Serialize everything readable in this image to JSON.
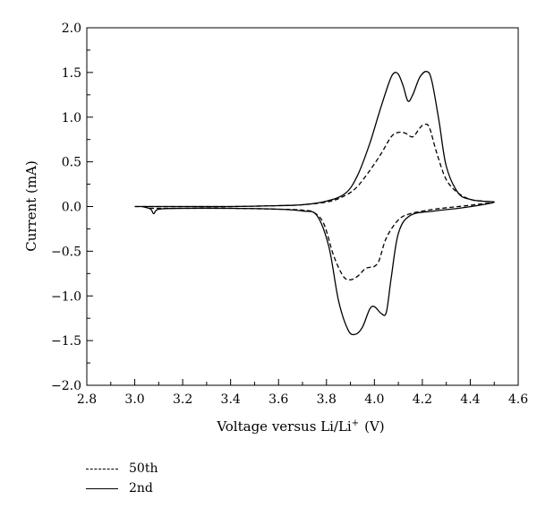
{
  "chart_data": {
    "type": "line",
    "xlabel_main": "Voltage versus Li/Li",
    "xlabel_sup": "+",
    "xlabel_unit": "(V)",
    "ylabel": "Current (mA)",
    "xlim": [
      2.8,
      4.6
    ],
    "ylim": [
      -2.0,
      2.0
    ],
    "xticks": [
      "2.8",
      "3.0",
      "3.2",
      "3.4",
      "3.6",
      "3.8",
      "4.0",
      "4.2",
      "4.4",
      "4.6"
    ],
    "yticks": [
      "2.0",
      "1.5",
      "1.0",
      "0.5",
      "0.0",
      "−0.5",
      "−1.0",
      "−1.5",
      "−2.0"
    ],
    "grid": false,
    "legend_position": "bottom-left",
    "series": [
      {
        "name": "50th",
        "style": "dashed",
        "points": [
          [
            3.0,
            0.0
          ],
          [
            3.2,
            0.0
          ],
          [
            3.4,
            0.0
          ],
          [
            3.6,
            0.01
          ],
          [
            3.7,
            0.02
          ],
          [
            3.8,
            0.05
          ],
          [
            3.86,
            0.1
          ],
          [
            3.92,
            0.2
          ],
          [
            3.98,
            0.4
          ],
          [
            4.03,
            0.6
          ],
          [
            4.07,
            0.78
          ],
          [
            4.1,
            0.83
          ],
          [
            4.13,
            0.82
          ],
          [
            4.16,
            0.78
          ],
          [
            4.19,
            0.88
          ],
          [
            4.21,
            0.92
          ],
          [
            4.23,
            0.88
          ],
          [
            4.26,
            0.6
          ],
          [
            4.3,
            0.3
          ],
          [
            4.35,
            0.15
          ],
          [
            4.4,
            0.08
          ],
          [
            4.45,
            0.06
          ],
          [
            4.5,
            0.05
          ],
          [
            4.45,
            0.03
          ],
          [
            4.35,
            0.0
          ],
          [
            4.25,
            -0.03
          ],
          [
            4.15,
            -0.08
          ],
          [
            4.1,
            -0.15
          ],
          [
            4.05,
            -0.35
          ],
          [
            4.02,
            -0.6
          ],
          [
            4.0,
            -0.67
          ],
          [
            3.98,
            -0.68
          ],
          [
            3.96,
            -0.7
          ],
          [
            3.93,
            -0.78
          ],
          [
            3.9,
            -0.82
          ],
          [
            3.87,
            -0.78
          ],
          [
            3.83,
            -0.55
          ],
          [
            3.79,
            -0.2
          ],
          [
            3.75,
            -0.07
          ],
          [
            3.7,
            -0.04
          ],
          [
            3.6,
            -0.03
          ],
          [
            3.4,
            -0.02
          ],
          [
            3.2,
            -0.02
          ],
          [
            3.1,
            -0.02
          ],
          [
            3.05,
            -0.02
          ]
        ]
      },
      {
        "name": "2nd",
        "style": "solid",
        "points": [
          [
            3.0,
            0.0
          ],
          [
            3.2,
            0.0
          ],
          [
            3.4,
            0.0
          ],
          [
            3.6,
            0.01
          ],
          [
            3.7,
            0.02
          ],
          [
            3.8,
            0.06
          ],
          [
            3.88,
            0.15
          ],
          [
            3.93,
            0.35
          ],
          [
            3.98,
            0.7
          ],
          [
            4.02,
            1.05
          ],
          [
            4.06,
            1.38
          ],
          [
            4.08,
            1.49
          ],
          [
            4.1,
            1.48
          ],
          [
            4.12,
            1.35
          ],
          [
            4.14,
            1.18
          ],
          [
            4.16,
            1.25
          ],
          [
            4.19,
            1.45
          ],
          [
            4.22,
            1.51
          ],
          [
            4.24,
            1.4
          ],
          [
            4.27,
            0.95
          ],
          [
            4.3,
            0.45
          ],
          [
            4.35,
            0.15
          ],
          [
            4.4,
            0.08
          ],
          [
            4.45,
            0.06
          ],
          [
            4.5,
            0.05
          ],
          [
            4.45,
            0.02
          ],
          [
            4.35,
            -0.02
          ],
          [
            4.25,
            -0.05
          ],
          [
            4.15,
            -0.1
          ],
          [
            4.1,
            -0.3
          ],
          [
            4.07,
            -0.8
          ],
          [
            4.05,
            -1.18
          ],
          [
            4.03,
            -1.2
          ],
          [
            4.0,
            -1.12
          ],
          [
            3.98,
            -1.15
          ],
          [
            3.95,
            -1.35
          ],
          [
            3.92,
            -1.43
          ],
          [
            3.89,
            -1.38
          ],
          [
            3.85,
            -1.05
          ],
          [
            3.81,
            -0.45
          ],
          [
            3.76,
            -0.1
          ],
          [
            3.7,
            -0.05
          ],
          [
            3.6,
            -0.03
          ],
          [
            3.4,
            -0.02
          ],
          [
            3.2,
            -0.02
          ],
          [
            3.1,
            -0.03
          ],
          [
            3.08,
            -0.08
          ],
          [
            3.07,
            -0.04
          ],
          [
            3.06,
            -0.02
          ],
          [
            3.03,
            0.0
          ]
        ]
      }
    ]
  }
}
